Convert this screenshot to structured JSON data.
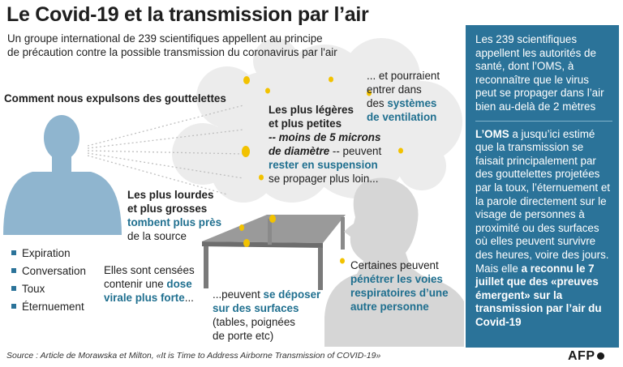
{
  "header": {
    "title": "Le Covid-19 et la transmission par l’air",
    "subtitle_line1": "Un groupe international de 239 scientifiques appellent au principe",
    "subtitle_line2": "de précaution contre la possible transmission du coronavirus par l'air"
  },
  "diagram": {
    "expulsion_heading": "Comment nous expulsons des gouttelettes",
    "light": {
      "line1": "Les plus légères",
      "line2_a": "et plus petites",
      "line3": "-- moins de 5 microns",
      "line4_a": "de diamètre",
      "line4_b": " -- peuvent",
      "line5": "rester en suspension",
      "line6": "se propager plus loin..."
    },
    "ventilation": {
      "line1": "... et pourraient",
      "line2": "entrer dans",
      "line3_a": "des ",
      "line3_b": "systèmes",
      "line4": "de ventilation"
    },
    "heavy": {
      "line1": "Les plus lourdes",
      "line2": "et plus grosses",
      "line3": "tombent plus près",
      "line4": "de la source"
    },
    "dose": {
      "line1": "Elles sont censées",
      "line2_a": "contenir une ",
      "line2_b": "dose",
      "line3": "virale plus forte",
      "line3_b": "..."
    },
    "surface": {
      "line1_a": "...peuvent ",
      "line1_b": "se déposer",
      "line2": "sur des surfaces",
      "line3": "(tables, poignées",
      "line4": "de porte etc)"
    },
    "other_person": {
      "line1": "Certaines peuvent",
      "line2": "pénétrer les voies",
      "line3_a": "respiratoires d’une",
      "line4": "autre personne"
    },
    "list": [
      "Expiration",
      "Conversation",
      "Toux",
      "Éternuement"
    ]
  },
  "sidebar": {
    "p1": "Les 239 scientifiques appellent les autorités de santé, dont l’OMS, à reconnaître que le virus peut se propager dans l’air bien au-delà de 2 mètres",
    "p2_a": "L’OMS",
    "p2_b": " a jusqu’ici estimé que la transmission se faisait principalement par des gouttelettes projetées par la toux, l’éternuement et la parole directement sur le visage de personnes à proximité ou des surfaces où elles peuvent survivre des heures, voire des jours. Mais elle ",
    "p2_c": "a reconnu le 7 juillet que des «preuves émergent» sur la transmission par l’air du Covid-19"
  },
  "footer": {
    "source": "Source : Article de Morawska et Milton, «It is Time to Address Airborne Transmission of COVID-19»",
    "logo": "AFP"
  },
  "colors": {
    "teal": "#1f6f8f",
    "sidebar_bg": "#2b7399",
    "person_fill": "#8fb5cf",
    "cloud": "#e8e8e8",
    "droplet": "#f2c200"
  }
}
